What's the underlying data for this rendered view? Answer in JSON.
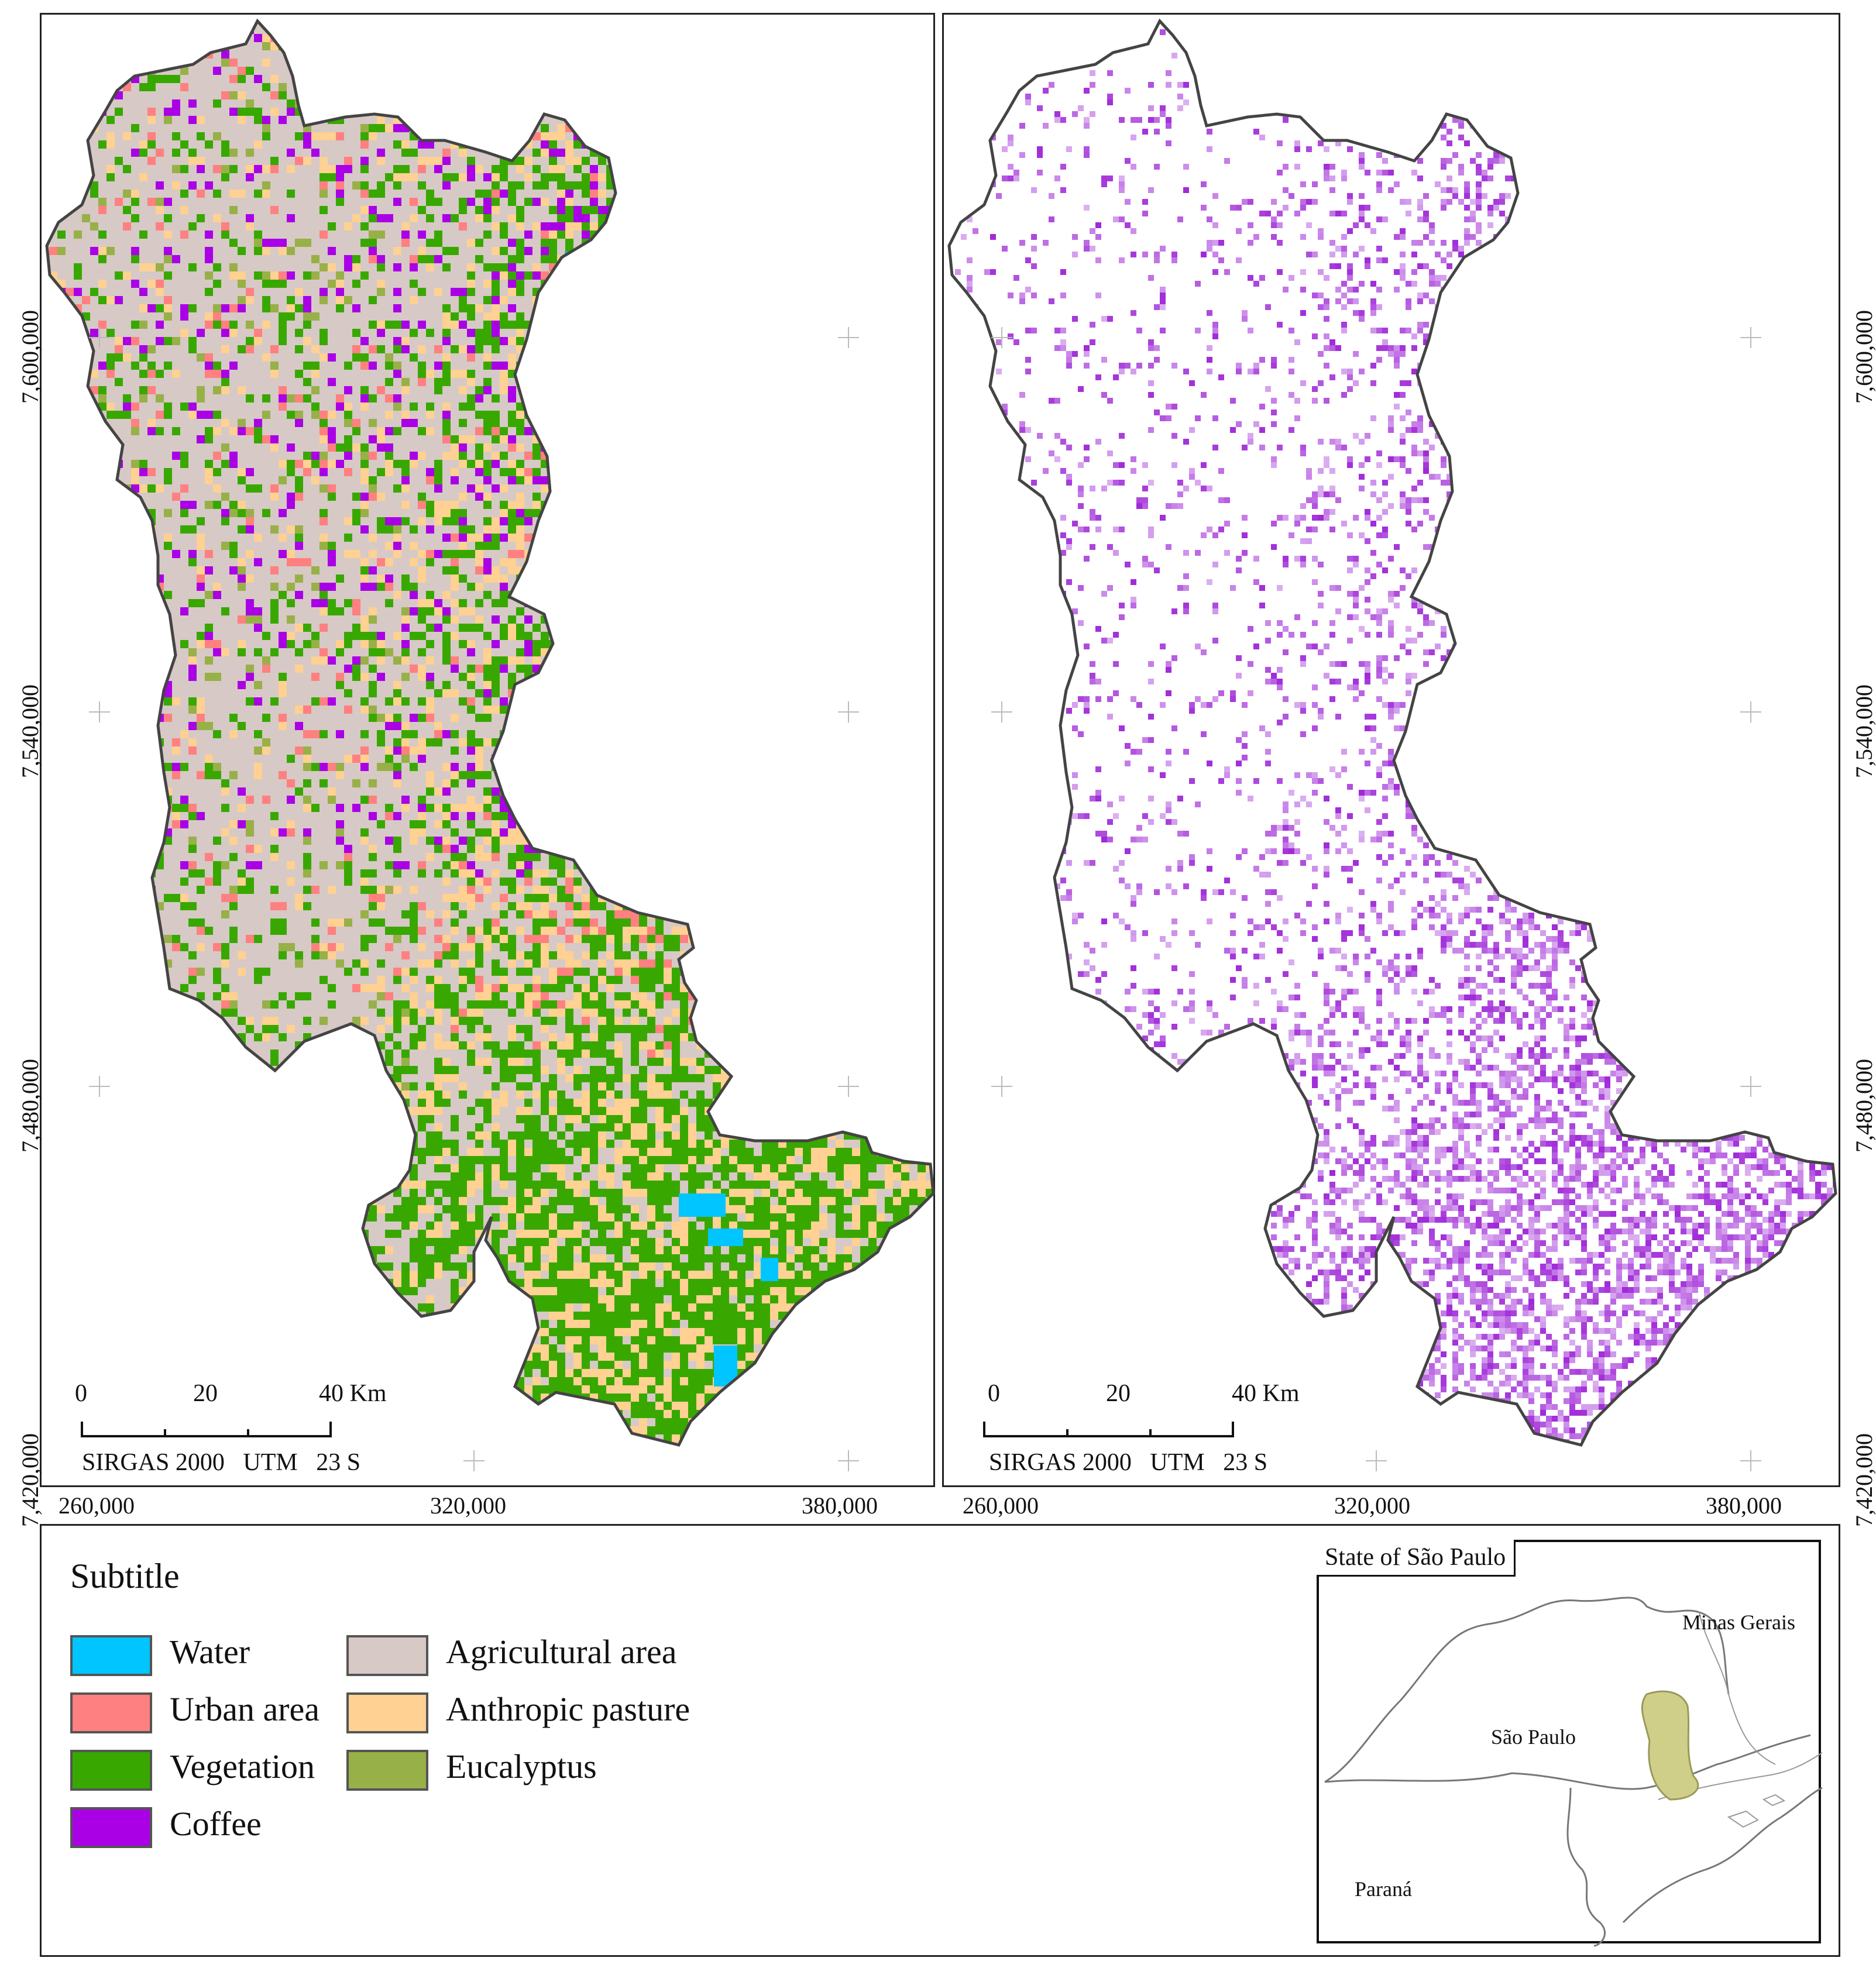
{
  "maps": {
    "left": {
      "title": ""
    },
    "right": {
      "title": ""
    }
  },
  "axes": {
    "x_ticks": [
      "260,000",
      "320,000",
      "380,000"
    ],
    "y_ticks": [
      "7,600,000",
      "7,540,000",
      "7,480,000",
      "7,420,000"
    ]
  },
  "scale_bar": {
    "labels": [
      "0",
      "20",
      "40 Km"
    ],
    "projection": "SIRGAS 2000   UTM   23 S"
  },
  "legend": {
    "title": "Subtitle",
    "items": [
      {
        "label": "Water",
        "color": "#00c5ff"
      },
      {
        "label": "Urban area",
        "color": "#ff8080"
      },
      {
        "label": "Vegetation",
        "color": "#38a800"
      },
      {
        "label": "Coffee",
        "color": "#a900e6"
      },
      {
        "label": "Agricultural area",
        "color": "#d7c9c6"
      },
      {
        "label": "Anthropic pasture",
        "color": "#ffd192"
      },
      {
        "label": "Eucalyptus",
        "color": "#98b048"
      }
    ]
  },
  "inset": {
    "title": "State of São Paulo",
    "labels": {
      "mg": "Minas Gerais",
      "sp": "São Paulo",
      "pr": "Paraná"
    },
    "highlight_color": "#cfcf8a"
  },
  "colors": {
    "coffee_probability": "#9b1fd6",
    "outline": "#444444"
  }
}
